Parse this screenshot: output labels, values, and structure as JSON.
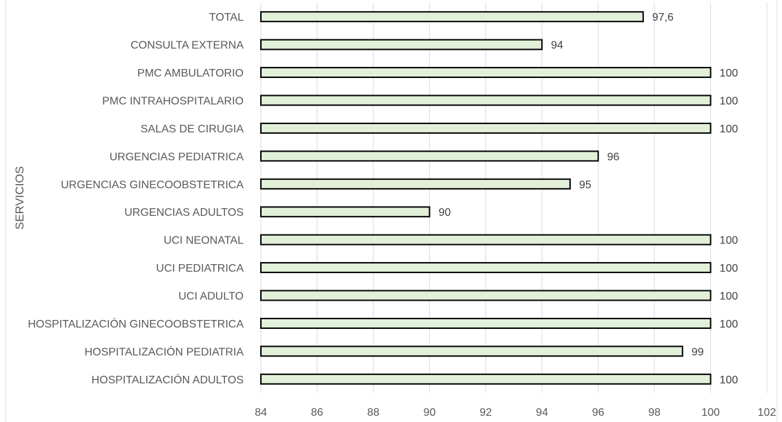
{
  "chart_data": {
    "type": "bar",
    "orientation": "horizontal",
    "ylabel": "SERVICIOS",
    "xlabel": "",
    "categories": [
      "TOTAL",
      "CONSULTA EXTERNA",
      "PMC AMBULATORIO",
      "PMC INTRAHOSPITALARIO",
      "SALAS DE CIRUGIA",
      "URGENCIAS PEDIATRICA",
      "URGENCIAS GINECOOBSTETRICA",
      "URGENCIAS ADULTOS",
      "UCI NEONATAL",
      "UCI PEDIATRICA",
      "UCI ADULTO",
      "HOSPITALIZACIÓN GINECOOBSTETRICA",
      "HOSPITALIZACIÓN PEDIATRIA",
      "HOSPITALIZACIÓN ADULTOS"
    ],
    "values": [
      97.6,
      94,
      100,
      100,
      100,
      96,
      95,
      90,
      100,
      100,
      100,
      100,
      99,
      100
    ],
    "data_labels": [
      "97,6",
      "94",
      "100",
      "100",
      "100",
      "96",
      "95",
      "90",
      "100",
      "100",
      "100",
      "100",
      "99",
      "100"
    ],
    "xlim": [
      84,
      102
    ],
    "x_ticks": [
      84,
      86,
      88,
      90,
      92,
      94,
      96,
      98,
      100,
      102
    ],
    "grid": true,
    "bar_fill": "#e2f0d9",
    "bar_stroke": "#000000",
    "grid_color": "#d9d9d9"
  }
}
